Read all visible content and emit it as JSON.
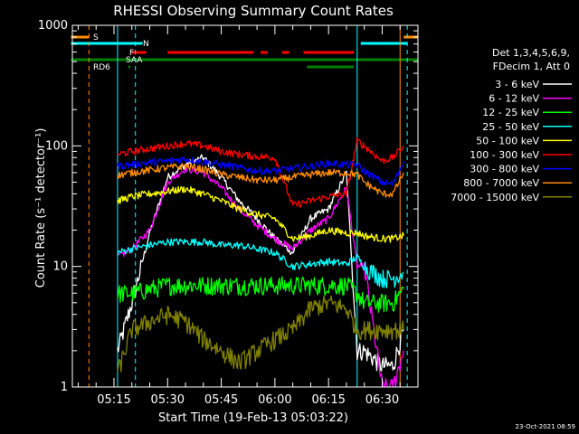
{
  "chart_data": {
    "type": "line",
    "title": "RHESSI Observing Summary Count Rates",
    "xlabel": "Start Time (19-Feb-13 05:03:22)",
    "ylabel": "Count Rate (s⁻¹ detector⁻¹)",
    "yscale": "log",
    "ylim": [
      1,
      1000
    ],
    "xlim": [
      "05:03:22",
      "06:40:00"
    ],
    "x_ticks": [
      "05:15",
      "05:30",
      "05:45",
      "06:00",
      "06:15",
      "06:30"
    ],
    "y_ticks": [
      "1",
      "10",
      "100",
      "1000"
    ],
    "grid": false,
    "legend_position": "right",
    "legend_header": [
      "Det 1,3,4,5,6,9,",
      "FDecim 1, Att 0"
    ],
    "timestamp": "23-Oct-2021 08:59",
    "flags": [
      {
        "name": "S",
        "color": "#ff8c00",
        "segments": [
          [
            "05:03",
            "05:08"
          ],
          [
            "06:36",
            "06:40"
          ]
        ]
      },
      {
        "name": "N",
        "color": "#00ffff",
        "segments": [
          [
            "05:03",
            "05:23"
          ],
          [
            "06:24",
            "06:37"
          ]
        ]
      },
      {
        "name": "F",
        "color": "#ff0000",
        "segments": [
          [
            "05:20",
            "05:24"
          ],
          [
            "05:30",
            "05:54"
          ],
          [
            "05:56",
            "05:58"
          ],
          [
            "06:02",
            "06:04"
          ],
          [
            "06:08",
            "06:22"
          ]
        ]
      },
      {
        "name": "SAA",
        "color": "#008000",
        "segments": [
          [
            "05:03",
            "06:40"
          ]
        ]
      },
      {
        "name": "RD6",
        "color": "#008000",
        "segments": [
          [
            "05:19",
            "05:19"
          ],
          [
            "06:09",
            "06:22"
          ]
        ]
      }
    ],
    "vlines": [
      {
        "time": "05:08",
        "color": "#ff8c00",
        "style": "dashed"
      },
      {
        "time": "05:16",
        "color": "#00ffff",
        "style": "solid"
      },
      {
        "time": "05:21",
        "color": "#00ffff",
        "style": "dashed"
      },
      {
        "time": "06:23",
        "color": "#00ffff",
        "style": "solid"
      },
      {
        "time": "06:35",
        "color": "#ff8c00",
        "style": "solid"
      },
      {
        "time": "06:37",
        "color": "#00ffff",
        "style": "dashed"
      }
    ],
    "x": [
      "05:16",
      "05:20",
      "05:25",
      "05:30",
      "05:35",
      "05:40",
      "05:45",
      "05:50",
      "05:55",
      "06:00",
      "06:05",
      "06:10",
      "06:15",
      "06:20",
      "06:23",
      "06:25",
      "06:30",
      "06:33",
      "06:36"
    ],
    "series": [
      {
        "name": "3 - 6 keV",
        "color": "#ffffff",
        "values": [
          2,
          5,
          19,
          55,
          70,
          80,
          55,
          35,
          25,
          17,
          13,
          25,
          30,
          60,
          2,
          2,
          1.5,
          1.5,
          3
        ]
      },
      {
        "name": "6 - 12 keV",
        "color": "#ff00ff",
        "values": [
          12,
          14,
          20,
          50,
          65,
          60,
          45,
          30,
          22,
          17,
          14,
          20,
          25,
          45,
          10,
          10,
          1,
          1,
          2
        ]
      },
      {
        "name": "12 - 25 keV",
        "color": "#00ff00",
        "values": [
          6,
          6,
          6.5,
          7,
          7,
          7,
          7,
          7,
          7,
          7,
          7,
          7,
          7,
          7,
          6,
          5,
          5,
          5,
          6.5
        ]
      },
      {
        "name": "25 - 50 keV",
        "color": "#00ffff",
        "values": [
          13,
          14,
          15,
          16,
          16,
          16,
          15,
          15,
          14,
          13,
          10,
          10.5,
          11,
          10.5,
          12,
          10,
          8,
          8,
          9
        ]
      },
      {
        "name": "50 - 100 keV",
        "color": "#ffff00",
        "values": [
          35,
          38,
          40,
          42,
          44,
          40,
          35,
          30,
          27,
          25,
          17,
          18,
          20,
          19,
          19,
          18,
          17,
          17,
          18
        ]
      },
      {
        "name": "100 - 300 keV",
        "color": "#ff0000",
        "values": [
          85,
          90,
          95,
          100,
          105,
          100,
          90,
          85,
          82,
          80,
          32,
          35,
          38,
          40,
          110,
          100,
          75,
          80,
          100
        ]
      },
      {
        "name": "300 - 800 keV",
        "color": "#0000ff",
        "values": [
          68,
          70,
          73,
          75,
          78,
          74,
          70,
          66,
          62,
          62,
          65,
          68,
          72,
          70,
          70,
          62,
          50,
          48,
          75
        ]
      },
      {
        "name": "800 - 7000 keV",
        "color": "#ff8c00",
        "values": [
          57,
          60,
          63,
          66,
          68,
          64,
          58,
          55,
          52,
          52,
          55,
          58,
          60,
          60,
          58,
          50,
          40,
          40,
          60
        ]
      },
      {
        "name": "7000 - 15000 keV",
        "color": "#808000",
        "values": [
          1.3,
          3,
          3.5,
          4,
          3.5,
          2.5,
          2,
          1.6,
          2,
          2.5,
          3,
          4.5,
          5,
          4.5,
          3,
          3,
          3,
          3,
          3
        ]
      }
    ]
  }
}
